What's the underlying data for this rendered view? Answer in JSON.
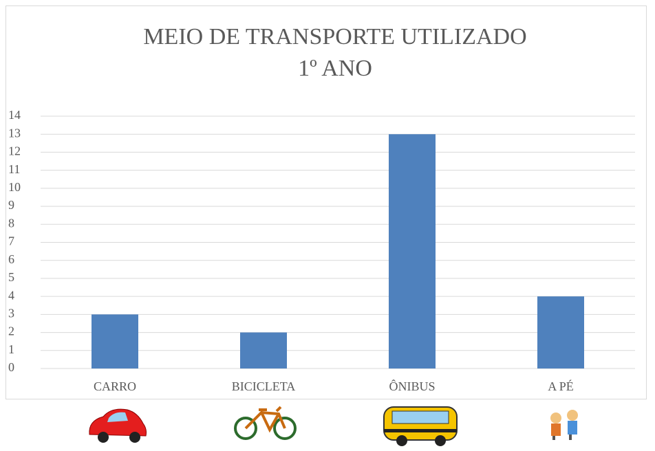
{
  "chart_data": {
    "type": "bar",
    "title": "MEIO DE TRANSPORTE UTILIZADO",
    "subtitle": "1º ANO",
    "categories": [
      "CARRO",
      "BICICLETA",
      "ÔNIBUS",
      "A PÉ"
    ],
    "values": [
      3,
      2,
      13,
      4
    ],
    "color": "#4f81bd",
    "ylim": [
      0,
      14
    ],
    "yticks": [
      0,
      1,
      2,
      3,
      4,
      5,
      6,
      7,
      8,
      9,
      10,
      11,
      12,
      13,
      14
    ],
    "grid": true
  }
}
